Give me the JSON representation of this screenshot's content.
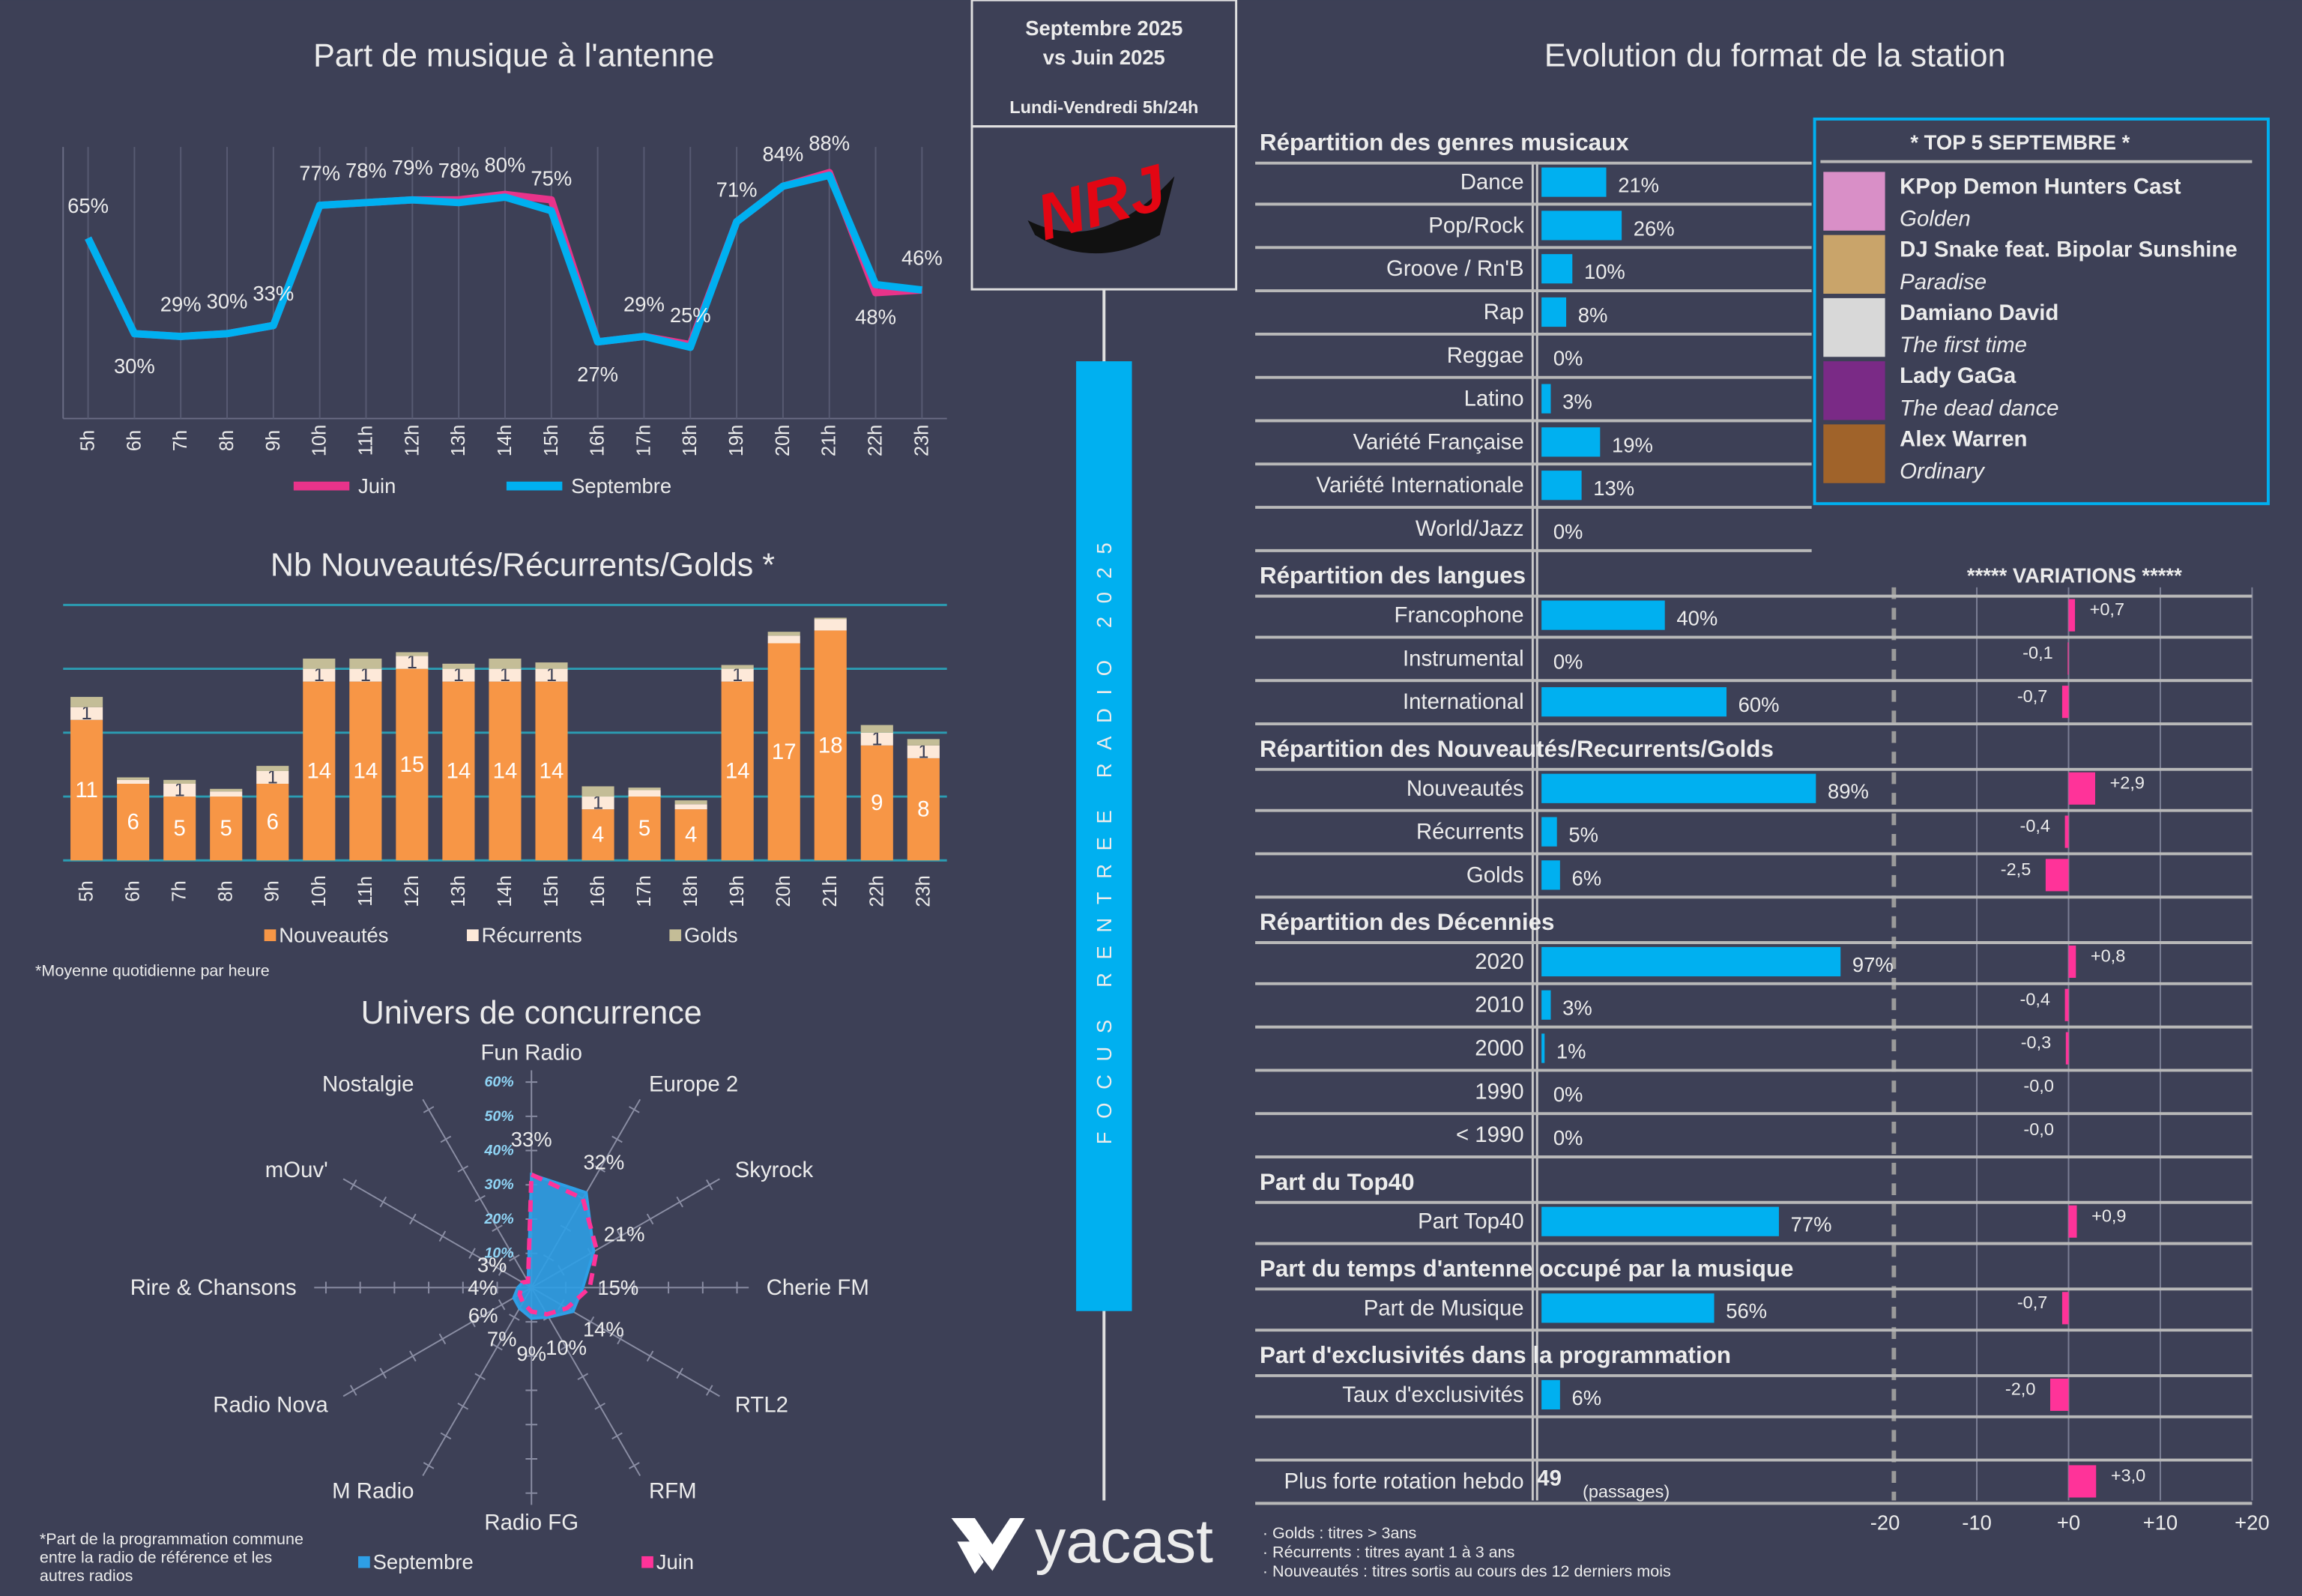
{
  "header": {
    "period": "Septembre 2025",
    "comparison": "vs Juin 2025",
    "daypart": "Lundi-Vendredi 5h/24h",
    "logo": "NRJ",
    "banner": "FOCUS RENTREE RADIO 2025",
    "brand": "yacast"
  },
  "chart_data": [
    {
      "type": "line",
      "title": "Part de musique à l'antenne",
      "categories": [
        "5h",
        "6h",
        "7h",
        "8h",
        "9h",
        "10h",
        "11h",
        "12h",
        "13h",
        "14h",
        "15h",
        "16h",
        "17h",
        "18h",
        "19h",
        "20h",
        "21h",
        "22h",
        "23h"
      ],
      "ylim": [
        0,
        100
      ],
      "series": [
        {
          "name": "Juin",
          "color": "#e8338a",
          "values": [
            65,
            30,
            29,
            30,
            33,
            77,
            78,
            79,
            79,
            81,
            79,
            27,
            29,
            26,
            71,
            84,
            89,
            45,
            46
          ]
        },
        {
          "name": "Septembre",
          "color": "#00b0f0",
          "values": [
            65,
            30,
            29,
            30,
            33,
            77,
            78,
            79,
            78,
            80,
            75,
            27,
            29,
            25,
            71,
            84,
            88,
            48,
            46
          ],
          "value_labels": [
            "65%",
            "30%",
            "29%",
            "30%",
            "33%",
            "77%",
            "78%",
            "79%",
            "78%",
            "80%",
            "75%",
            "27%",
            "29%",
            "25%",
            "71%",
            "84%",
            "88%",
            "48%",
            "46%"
          ]
        }
      ]
    },
    {
      "type": "bar",
      "stacked": true,
      "title": "Nb Nouveautés/Récurrents/Golds *",
      "categories": [
        "5h",
        "6h",
        "7h",
        "8h",
        "9h",
        "10h",
        "11h",
        "12h",
        "13h",
        "14h",
        "15h",
        "16h",
        "17h",
        "18h",
        "19h",
        "20h",
        "21h",
        "22h",
        "23h"
      ],
      "ylim": [
        0,
        20
      ],
      "yticks": [
        0,
        5,
        10,
        15,
        20
      ],
      "grid": true,
      "series": [
        {
          "name": "Nouveautés",
          "color": "#f79646",
          "values": [
            11,
            6,
            5,
            5,
            6,
            14,
            14,
            15,
            14,
            14,
            14,
            4,
            5,
            4,
            14,
            17,
            18,
            9,
            8
          ]
        },
        {
          "name": "Récurrents",
          "color": "#fde9d9",
          "values": [
            1,
            0.3,
            1,
            0.4,
            1,
            1,
            1,
            1,
            1,
            1,
            1,
            1,
            0.5,
            0.4,
            1,
            0.6,
            0.9,
            1,
            1
          ]
        },
        {
          "name": "Golds",
          "color": "#c4bd97",
          "values": [
            0.8,
            0.2,
            0.3,
            0.2,
            0.4,
            0.8,
            0.8,
            0.3,
            0.4,
            0.8,
            0.5,
            0.8,
            0.2,
            0.3,
            0.3,
            0.3,
            0.1,
            0.6,
            0.5
          ]
        }
      ],
      "note": "*Moyenne quotidienne par heure"
    },
    {
      "type": "radar",
      "title": "Univers de concurrence",
      "categories": [
        "Fun Radio",
        "Europe 2",
        "Skyrock",
        "Cherie FM",
        "RTL2",
        "RFM",
        "Radio FG",
        "M Radio",
        "Radio Nova",
        "Rire & Chansons",
        "mOuv'",
        "Nostalgie"
      ],
      "rlim": [
        0,
        60
      ],
      "rticks": [
        {
          "value": 10,
          "label": "10%"
        },
        {
          "value": 20,
          "label": "20%"
        },
        {
          "value": 30,
          "label": "30%"
        },
        {
          "value": 40,
          "label": "40%"
        },
        {
          "value": 50,
          "label": "50%"
        },
        {
          "value": 60,
          "label": "60%"
        }
      ],
      "series": [
        {
          "name": "Septembre",
          "color": "#2e9fe6",
          "values": [
            33,
            32,
            21,
            15,
            14,
            10,
            9,
            7,
            6,
            4,
            3,
            2
          ],
          "value_labels": [
            "33%",
            "32%",
            "21%",
            "15%",
            "14%",
            "10%",
            "9%",
            "7%",
            "6%",
            "4%",
            "3%",
            null
          ]
        },
        {
          "name": "Juin",
          "color": "#ff3399",
          "values": [
            33,
            30,
            22,
            17,
            12,
            9,
            7,
            5,
            4,
            3,
            3,
            2
          ]
        }
      ],
      "note": [
        "*Part de la programmation commune",
        "entre la radio de référence et les",
        "autres radios"
      ]
    },
    {
      "type": "barh",
      "title": "Evolution du format de la station",
      "xlim": [
        0,
        100
      ],
      "color": "#00b0f0",
      "variation_title": "*****    VARIATIONS   *****",
      "variation_color": "#ff3399",
      "variation_xlim": [
        -20,
        20
      ],
      "variation_xticks": [
        -20,
        -10,
        {
          "value": 0,
          "label": "+0"
        },
        {
          "value": 10,
          "label": "+10"
        },
        {
          "value": 20,
          "label": "+20"
        }
      ],
      "sections": [
        {
          "title": "Répartition des genres musicaux",
          "categories": [
            "Dance",
            "Pop/Rock",
            "Groove / Rn'B",
            "Rap",
            "Reggae",
            "Latino",
            "Variété Française",
            "Variété Internationale",
            "World/Jazz"
          ],
          "values": [
            21,
            26,
            10,
            8,
            0,
            3,
            19,
            13,
            0
          ],
          "value_labels": [
            "21%",
            "26%",
            "10%",
            "8%",
            "0%",
            "3%",
            "19%",
            "13%",
            "0%"
          ]
        },
        {
          "title": "Répartition des langues",
          "categories": [
            "Francophone",
            "Instrumental",
            "International"
          ],
          "values": [
            40,
            0,
            60
          ],
          "value_labels": [
            "40%",
            "0%",
            "60%"
          ],
          "variations": [
            0.7,
            -0.1,
            -0.7
          ],
          "variation_labels": [
            "+0,7",
            "-0,1",
            "-0,7"
          ]
        },
        {
          "title": "Répartition des Nouveautés/Recurrents/Golds",
          "categories": [
            "Nouveautés",
            "Récurrents",
            "Golds"
          ],
          "values": [
            89,
            5,
            6
          ],
          "value_labels": [
            "89%",
            "5%",
            "6%"
          ],
          "variations": [
            2.9,
            -0.4,
            -2.5
          ],
          "variation_labels": [
            "+2,9",
            "-0,4",
            "-2,5"
          ]
        },
        {
          "title": "Répartition des Décennies",
          "categories": [
            "2020",
            "2010",
            "2000",
            "1990",
            "< 1990"
          ],
          "values": [
            97,
            3,
            1,
            0,
            0
          ],
          "value_labels": [
            "97%",
            "3%",
            "1%",
            "0%",
            "0%"
          ],
          "variations": [
            0.8,
            -0.4,
            -0.3,
            0,
            0
          ],
          "variation_labels": [
            "+0,8",
            "-0,4",
            "-0,3",
            "-0,0",
            "-0,0"
          ]
        },
        {
          "title": "Part du Top40",
          "categories": [
            "Part Top40"
          ],
          "values": [
            77
          ],
          "value_labels": [
            "77%"
          ],
          "variations": [
            0.9
          ],
          "variation_labels": [
            "+0,9"
          ]
        },
        {
          "title": "Part du temps d'antenne occupé par la musique",
          "categories": [
            "Part de Musique"
          ],
          "values": [
            56
          ],
          "value_labels": [
            "56%"
          ],
          "variations": [
            -0.7
          ],
          "variation_labels": [
            "-0,7"
          ]
        },
        {
          "title": "Part d'exclusivités dans la programmation",
          "categories": [
            "Taux d'exclusivités"
          ],
          "values": [
            6
          ],
          "value_labels": [
            "6%"
          ],
          "variations": [
            -2.0
          ],
          "variation_labels": [
            "-2,0"
          ]
        },
        {
          "display": "text",
          "categories": [
            "Plus forte rotation hebdo"
          ],
          "values": [
            49
          ],
          "unit": "(passages)",
          "variations": [
            3.0
          ],
          "variation_labels": [
            "+3,0"
          ]
        }
      ],
      "note": [
        "· Golds : titres > 3ans",
        "· Récurrents : titres ayant 1 à 3 ans",
        "· Nouveautés : titres sortis au cours des 12 derniers mois"
      ]
    }
  ],
  "top5": {
    "title": "*  TOP 5  SEPTEMBRE *",
    "items": [
      {
        "artist": "KPop Demon Hunters Cast",
        "title": "Golden"
      },
      {
        "artist": "DJ Snake feat. Bipolar Sunshine",
        "title": "Paradise"
      },
      {
        "artist": "Damiano David",
        "title": "The first time"
      },
      {
        "artist": "Lady GaGa",
        "title": "The dead dance"
      },
      {
        "artist": "Alex Warren",
        "title": "Ordinary"
      }
    ]
  }
}
